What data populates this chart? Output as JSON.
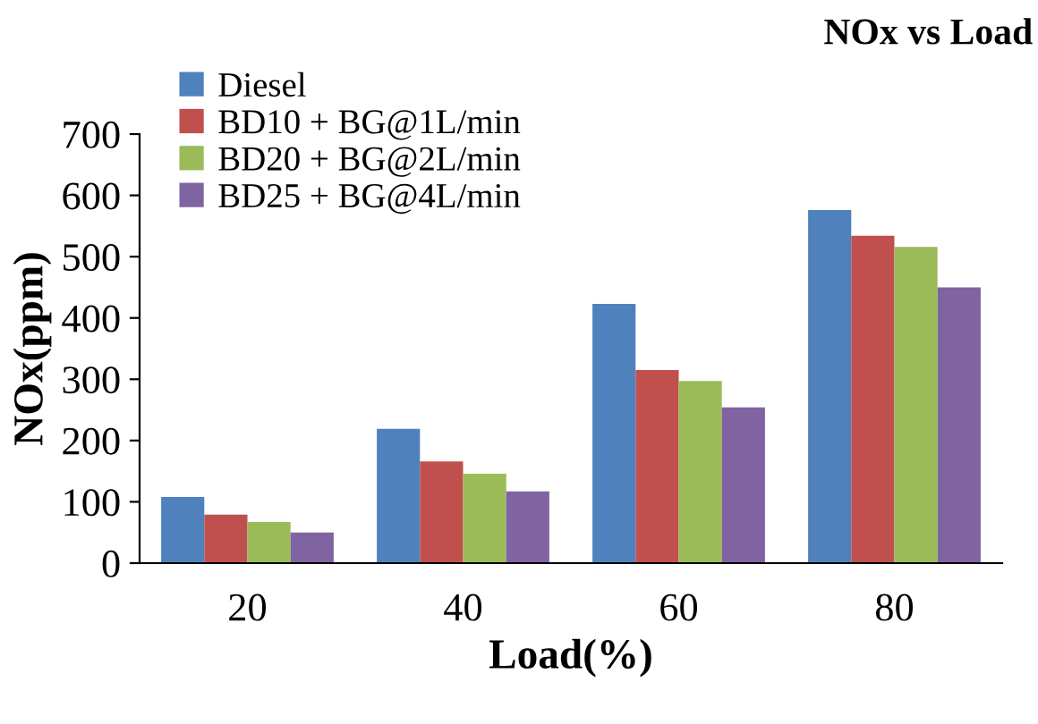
{
  "chart_data": {
    "type": "bar",
    "title": "NOx vs Load",
    "xlabel": "Load(%)",
    "ylabel": "NOx(ppm)",
    "categories": [
      "20",
      "40",
      "60",
      "80"
    ],
    "series": [
      {
        "name": "Diesel",
        "color": "#4f81bd",
        "values": [
          108,
          219,
          423,
          576
        ]
      },
      {
        "name": "BD10 + BG@1L/min",
        "color": "#c0504d",
        "values": [
          79,
          166,
          315,
          534
        ]
      },
      {
        "name": "BD20 + BG@2L/min",
        "color": "#9bbb59",
        "values": [
          67,
          146,
          297,
          516
        ]
      },
      {
        "name": "BD25 + BG@4L/min",
        "color": "#8064a2",
        "values": [
          50,
          117,
          254,
          450
        ]
      }
    ],
    "ylim": [
      0,
      700
    ],
    "yticks": [
      0,
      100,
      200,
      300,
      400,
      500,
      600,
      700
    ],
    "grid": false,
    "legend": "top left"
  }
}
